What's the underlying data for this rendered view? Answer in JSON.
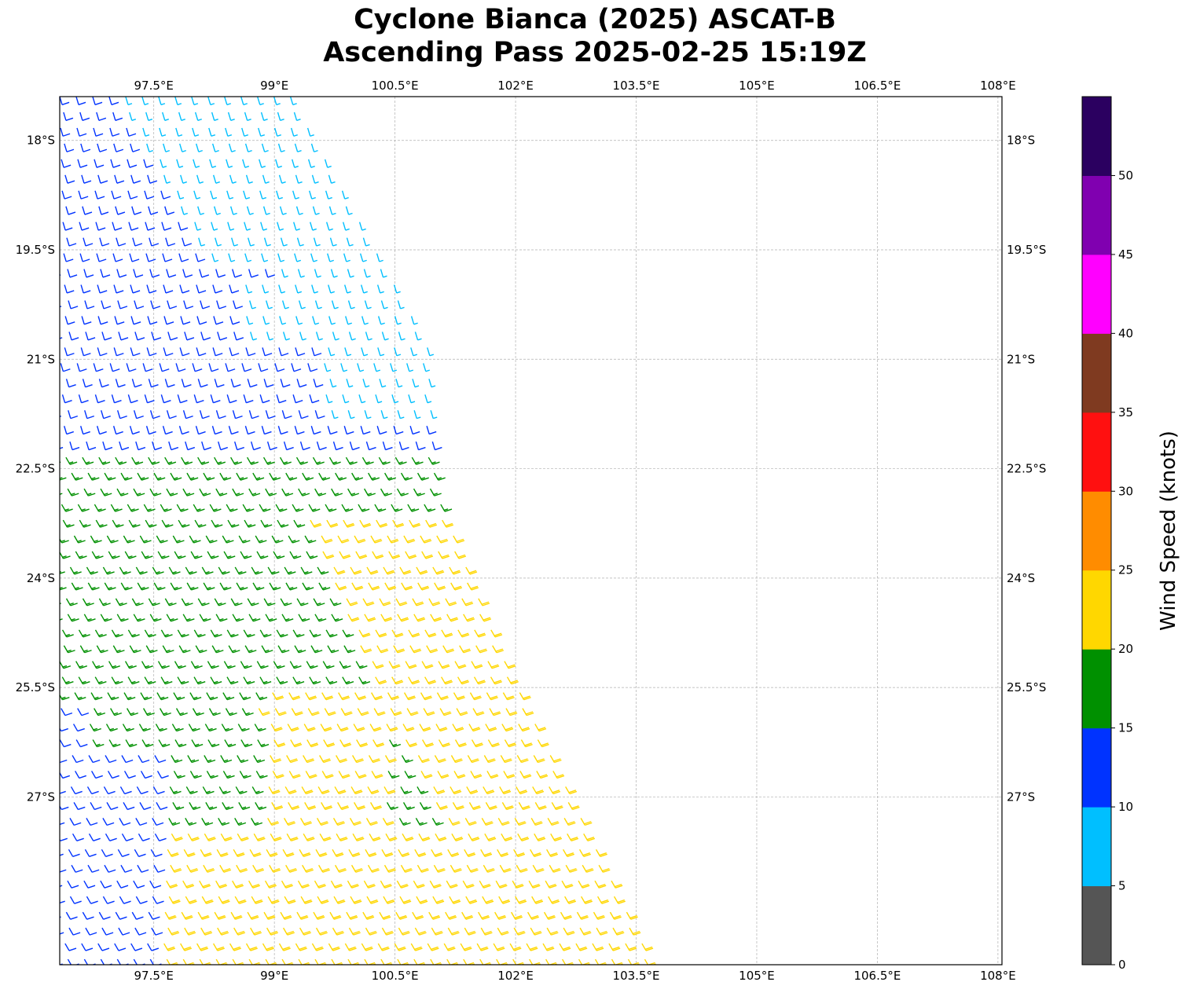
{
  "title_line1": "Cyclone Bianca (2025) ASCAT-B",
  "title_line2": "Ascending Pass 2025-02-25 15:19Z",
  "map": {
    "lon_range": [
      96.33,
      108.05
    ],
    "lat_range": [
      -29.3,
      -17.4
    ],
    "lon_ticks": [
      97.5,
      99,
      100.5,
      102,
      103.5,
      105,
      106.5,
      108
    ],
    "lon_tick_labels": [
      "97.5°E",
      "99°E",
      "100.5°E",
      "102°E",
      "103.5°E",
      "105°E",
      "106.5°E",
      "108°E"
    ],
    "lat_ticks": [
      -18,
      -19.5,
      -21,
      -22.5,
      -24,
      -25.5,
      -27
    ],
    "lat_tick_labels": [
      "18°S",
      "19.5°S",
      "21°S",
      "22.5°S",
      "24°S",
      "25.5°S",
      "27°S"
    ],
    "grid": "dashed",
    "swath_edge_lon": [
      [
        -17.4,
        99.2
      ],
      [
        -20.8,
        100.9
      ],
      [
        -22.8,
        101.0
      ],
      [
        -25.0,
        101.8
      ],
      [
        -29.3,
        103.7
      ]
    ]
  },
  "colorbar": {
    "label": "Wind Speed (knots)",
    "ticks": [
      "0",
      "5",
      "10",
      "15",
      "20",
      "25",
      "30",
      "35",
      "40",
      "45",
      "50"
    ],
    "colors": [
      "#555555",
      "#00bfff",
      "#0033ff",
      "#009000",
      "#ffd700",
      "#ff8c00",
      "#ff1010",
      "#7f3a20",
      "#ff00ff",
      "#8000b0",
      "#2b0060"
    ]
  }
}
